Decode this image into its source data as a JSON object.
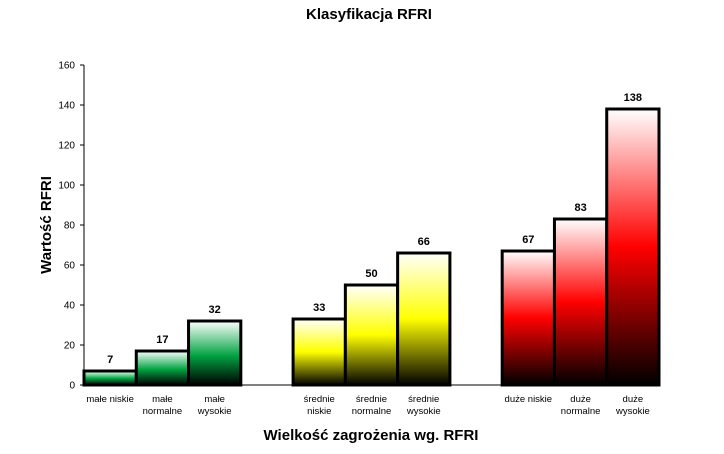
{
  "chart_data": {
    "type": "bar",
    "title": "Klasyfikacja  RFRI",
    "xlabel": "Wielkość zagrożenia wg. RFRI",
    "ylabel": "Wartość RFRI",
    "ylim": [
      0,
      160
    ],
    "yticks": [
      0,
      20,
      40,
      60,
      80,
      100,
      120,
      140,
      160
    ],
    "grid": false,
    "legend": "none",
    "groups": [
      {
        "color": "#009a3e",
        "bars": [
          {
            "label": [
              "małe niskie"
            ],
            "value": 7
          },
          {
            "label": [
              "małe",
              "normalne"
            ],
            "value": 17
          },
          {
            "label": [
              "małe",
              "wysokie"
            ],
            "value": 32
          }
        ]
      },
      {
        "color": "#ffff00",
        "bars": [
          {
            "label": [
              "średnie",
              "niskie"
            ],
            "value": 33
          },
          {
            "label": [
              "średnie",
              "normalne"
            ],
            "value": 50
          },
          {
            "label": [
              "średnie",
              "wysokie"
            ],
            "value": 66
          }
        ]
      },
      {
        "color": "#ff0000",
        "bars": [
          {
            "label": [
              "duże niskie"
            ],
            "value": 67
          },
          {
            "label": [
              "duże",
              "normalne"
            ],
            "value": 83
          },
          {
            "label": [
              "duże",
              "wysokie"
            ],
            "value": 138
          }
        ]
      }
    ]
  }
}
